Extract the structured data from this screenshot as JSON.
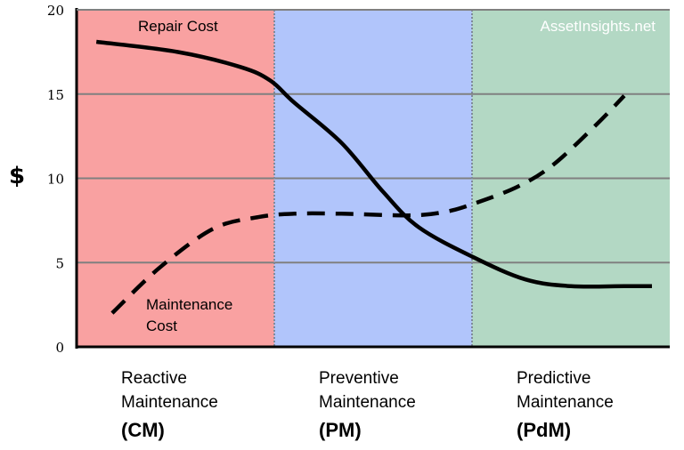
{
  "chart_data": {
    "type": "line",
    "ylabel": "$",
    "ylim": [
      0,
      20
    ],
    "yticks": [
      0,
      5,
      10,
      15,
      20
    ],
    "grid": true,
    "watermark": "AssetInsights.net",
    "regions": [
      {
        "lines": [
          "Reactive",
          "Maintenance"
        ],
        "abbr": "(CM)",
        "color": "#f9a1a1"
      },
      {
        "lines": [
          "Preventive",
          "Maintenance"
        ],
        "abbr": "(PM)",
        "color": "#b1c5fb"
      },
      {
        "lines": [
          "Predictive",
          "Maintenance"
        ],
        "abbr": "(PdM)",
        "color": "#b3d8c4"
      }
    ],
    "xlim": [
      0,
      3
    ],
    "series": [
      {
        "name": "Repair Cost",
        "style": "solid",
        "x": [
          0.1,
          0.51,
          0.83,
          0.98,
          1.1,
          1.34,
          1.55,
          1.73,
          2.01,
          2.27,
          2.5,
          2.77,
          2.91
        ],
        "y": [
          18.1,
          17.5,
          16.6,
          15.8,
          14.5,
          12.1,
          9.2,
          7.1,
          5.3,
          4.0,
          3.6,
          3.6,
          3.6
        ]
      },
      {
        "name": "Maintenance Cost",
        "name_lines": [
          "Maintenance",
          "Cost"
        ],
        "style": "dashed",
        "x": [
          0.18,
          0.42,
          0.69,
          0.92,
          1.1,
          1.34,
          1.68,
          1.86,
          2.01,
          2.23,
          2.41,
          2.63,
          2.77
        ],
        "y": [
          2.0,
          4.7,
          7.0,
          7.7,
          7.9,
          7.9,
          7.8,
          8.0,
          8.5,
          9.5,
          10.8,
          13.2,
          14.9
        ]
      }
    ]
  }
}
